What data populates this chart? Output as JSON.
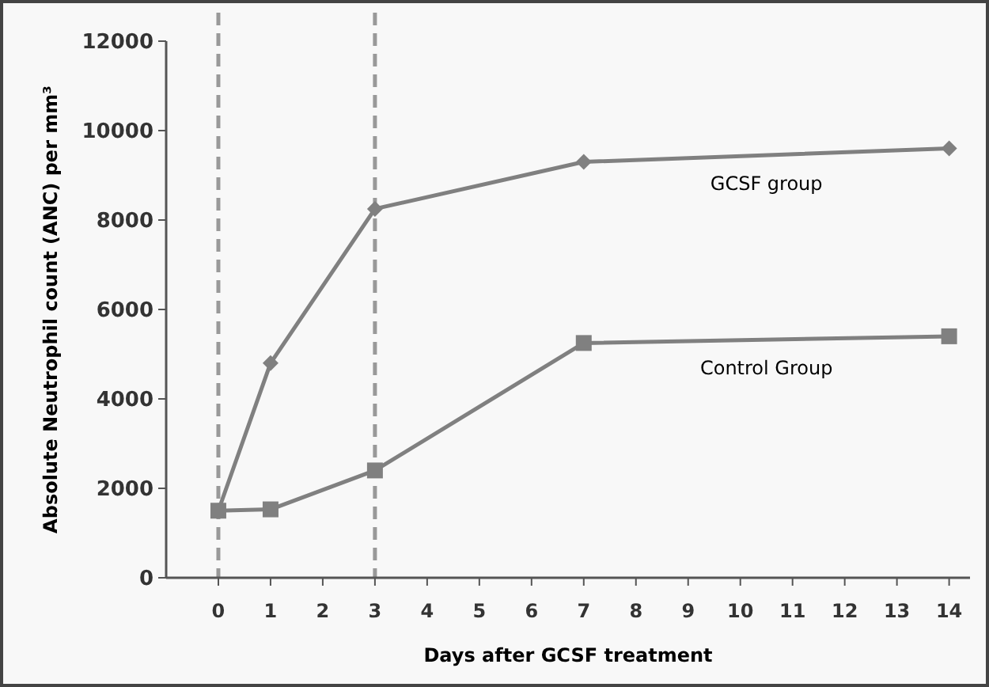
{
  "chart_data": {
    "type": "line",
    "xlabel": "Days after GCSF treatment",
    "ylabel": "Absolute Neutrophil count (ANC) per mm³",
    "x": [
      0,
      1,
      3,
      7,
      14
    ],
    "series": [
      {
        "name": "GCSF group",
        "color": "#808080",
        "marker": "diamond",
        "values": [
          1500,
          4800,
          8250,
          9300,
          9600
        ]
      },
      {
        "name": "Control Group",
        "color": "#808080",
        "marker": "square",
        "values": [
          1500,
          1530,
          2400,
          5250,
          5400
        ]
      }
    ],
    "xlim": [
      -1,
      14.4
    ],
    "xticks": [
      0,
      1,
      2,
      3,
      4,
      5,
      6,
      7,
      8,
      9,
      10,
      11,
      12,
      13,
      14
    ],
    "ylim": [
      0,
      12000
    ],
    "yticks": [
      0,
      2000,
      4000,
      6000,
      8000,
      10000,
      12000
    ],
    "ref_lines": [
      {
        "axis": "x",
        "value": 0,
        "color": "#999999",
        "line_style": "dashed"
      },
      {
        "axis": "x",
        "value": 3,
        "color": "#999999",
        "line_style": "dashed"
      }
    ],
    "grid": false
  }
}
